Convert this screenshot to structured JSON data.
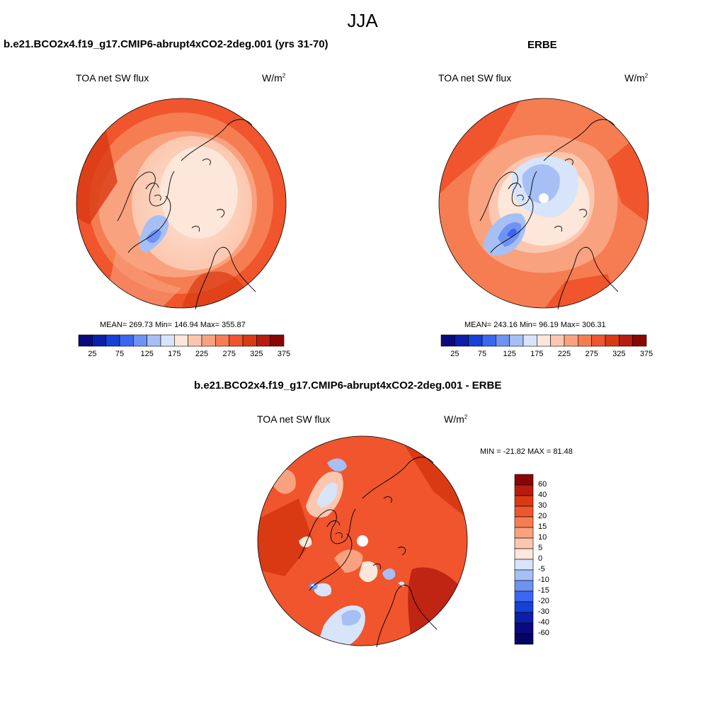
{
  "title": "JJA",
  "panels": [
    {
      "heading": "b.e21.BCO2x4.f19_g17.CMIP6-abrupt4xCO2-2deg.001 (yrs 31-70)",
      "variable": "TOA net SW flux",
      "units_base": "W/m",
      "units_exp": "2",
      "stats": "MEAN= 269.73  Min= 146.94  Max= 355.87"
    },
    {
      "heading": "ERBE",
      "variable": "TOA net SW flux",
      "units_base": "W/m",
      "units_exp": "2",
      "stats": "MEAN= 243.16  Min=  96.19  Max= 306.31"
    },
    {
      "heading": "b.e21.BCO2x4.f19_g17.CMIP6-abrupt4xCO2-2deg.001 - ERBE",
      "variable": "TOA net SW flux",
      "units_base": "W/m",
      "units_exp": "2",
      "stats": "MIN = -21.82 MAX =  81.48"
    }
  ],
  "colorbar_abs": {
    "ticks": [
      "25",
      "75",
      "125",
      "175",
      "225",
      "275",
      "325",
      "375"
    ],
    "colors": [
      "#0a0a7e",
      "#0c1fa8",
      "#1541d6",
      "#3a66f0",
      "#6f93f2",
      "#a6c0f6",
      "#d7e4fa",
      "#fde6da",
      "#fcc7ae",
      "#f9a27f",
      "#f67d52",
      "#f0552e",
      "#d93a13",
      "#b71c0d",
      "#8b0505"
    ]
  },
  "colorbar_diff": {
    "ticks": [
      "60",
      "40",
      "30",
      "20",
      "15",
      "10",
      "5",
      "0",
      "-5",
      "-10",
      "-15",
      "-20",
      "-30",
      "-40",
      "-60"
    ],
    "colors": [
      "#8b0505",
      "#b71c0d",
      "#d93a13",
      "#f0552e",
      "#f67d52",
      "#f9a27f",
      "#fcc7ae",
      "#fde6da",
      "#d7e4fa",
      "#a6c0f6",
      "#6f93f2",
      "#3a66f0",
      "#1541d6",
      "#0c1fa8",
      "#0a0a7e",
      "#050565"
    ]
  }
}
